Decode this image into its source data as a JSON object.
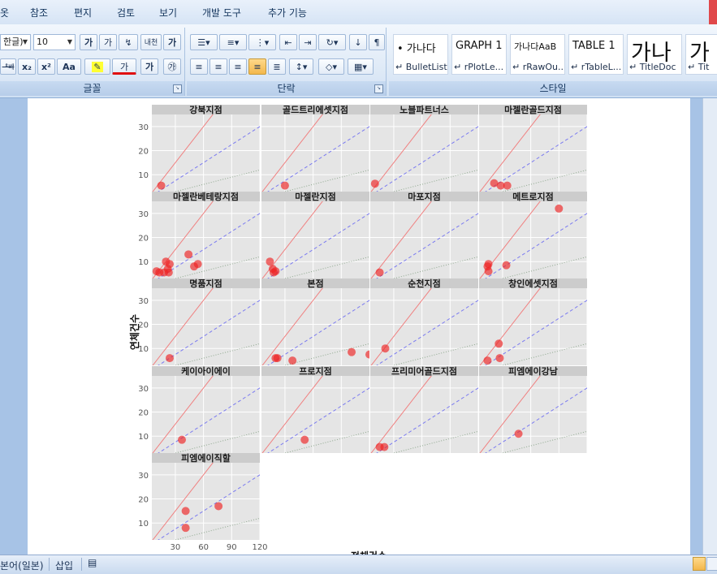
{
  "menu": [
    "옷",
    "참조",
    "편지",
    "검토",
    "보기",
    "개발 도구",
    "추가 기능"
  ],
  "ribbon": {
    "font_group": {
      "label": "글꼴",
      "font_name": "한글)",
      "font_size": "10",
      "buttons": [
        "가",
        "가",
        "내천",
        "가",
        "ᆥᄇᆥ",
        "x₂",
        "x²",
        "Aa",
        "가",
        "가",
        "가",
        "가"
      ]
    },
    "paragraph_group": {
      "label": "단락"
    },
    "styles_group": {
      "label": "스타일",
      "tiles": [
        {
          "preview": "• 가나다",
          "name": "↵ BulletList"
        },
        {
          "preview": "GRAPH 1",
          "name": "↵ rPlotLe..."
        },
        {
          "preview": "가나다AaB",
          "name": "↵ rRawOu..."
        },
        {
          "preview": "TABLE 1",
          "name": "↵ rTableL..."
        },
        {
          "preview": "가나",
          "name": "↵ TitleDoc"
        },
        {
          "preview": "가",
          "name": "↵ Tit"
        }
      ]
    }
  },
  "status": {
    "language": "본어(일본)",
    "mode": "삽입"
  },
  "chart_data": {
    "type": "scatter",
    "ylabel": "연체건수",
    "xlabel": "전체건수",
    "x_ticks": [
      30,
      60,
      90,
      120
    ],
    "y_ticks": [
      10,
      20,
      30
    ],
    "xlim": [
      5,
      120
    ],
    "ylim": [
      3,
      35
    ],
    "reference_lines": [
      {
        "slope": 0.5,
        "style": "solid",
        "color": "#f08080"
      },
      {
        "slope": 0.25,
        "style": "dashed",
        "color": "#7b7bf0"
      },
      {
        "slope": 0.1,
        "style": "dotted",
        "color": "#8fa88f"
      }
    ],
    "point_color": "#ee2222",
    "panels": [
      {
        "title": "강북지점",
        "points": [
          [
            15,
            5.5
          ]
        ]
      },
      {
        "title": "골드트리에셋지점",
        "points": [
          [
            30,
            5.5
          ]
        ]
      },
      {
        "title": "노블파트너스",
        "points": [
          [
            10,
            6.3
          ]
        ]
      },
      {
        "title": "마젤란골드지점",
        "points": [
          [
            21,
            6.5
          ],
          [
            28,
            5.5
          ],
          [
            35,
            5.5
          ]
        ]
      },
      {
        "title": "마젤란베테랑지점",
        "points": [
          [
            10,
            6
          ],
          [
            13,
            5.5
          ],
          [
            18,
            5.5
          ],
          [
            20,
            10
          ],
          [
            24,
            9
          ],
          [
            22,
            7
          ],
          [
            23,
            5.5
          ],
          [
            44,
            13
          ],
          [
            50,
            8
          ],
          [
            54,
            9
          ]
        ]
      },
      {
        "title": "마젤란지점",
        "points": [
          [
            14,
            10
          ],
          [
            17,
            7
          ],
          [
            18,
            5.5
          ],
          [
            20,
            6
          ]
        ]
      },
      {
        "title": "마포지점",
        "points": [
          [
            15,
            5.5
          ]
        ]
      },
      {
        "title": "메트로지점",
        "points": [
          [
            14,
            8
          ],
          [
            15,
            9
          ],
          [
            15,
            6
          ],
          [
            34,
            8.5
          ],
          [
            90,
            32
          ]
        ]
      },
      {
        "title": "명품지점",
        "points": [
          [
            24,
            6
          ]
        ]
      },
      {
        "title": "본점",
        "points": [
          [
            20,
            6
          ],
          [
            22,
            6
          ],
          [
            38,
            5
          ],
          [
            101,
            8.5
          ],
          [
            120,
            7.5
          ]
        ]
      },
      {
        "title": "순천지점",
        "points": [
          [
            21,
            10
          ]
        ]
      },
      {
        "title": "창인에셋지점",
        "points": [
          [
            14,
            5
          ],
          [
            26,
            12
          ],
          [
            27,
            6
          ]
        ]
      },
      {
        "title": "케이아이에이",
        "points": [
          [
            37,
            8.5
          ]
        ]
      },
      {
        "title": "프로지점",
        "points": [
          [
            51,
            8.5
          ]
        ]
      },
      {
        "title": "프리미어골드지점",
        "points": [
          [
            15,
            5.5
          ],
          [
            20,
            5.5
          ]
        ]
      },
      {
        "title": "피엠에이강남",
        "points": [
          [
            47,
            11
          ]
        ]
      },
      {
        "title": "피엠에이직할",
        "points": [
          [
            41,
            15
          ],
          [
            41,
            8
          ],
          [
            76,
            17
          ]
        ]
      }
    ]
  }
}
